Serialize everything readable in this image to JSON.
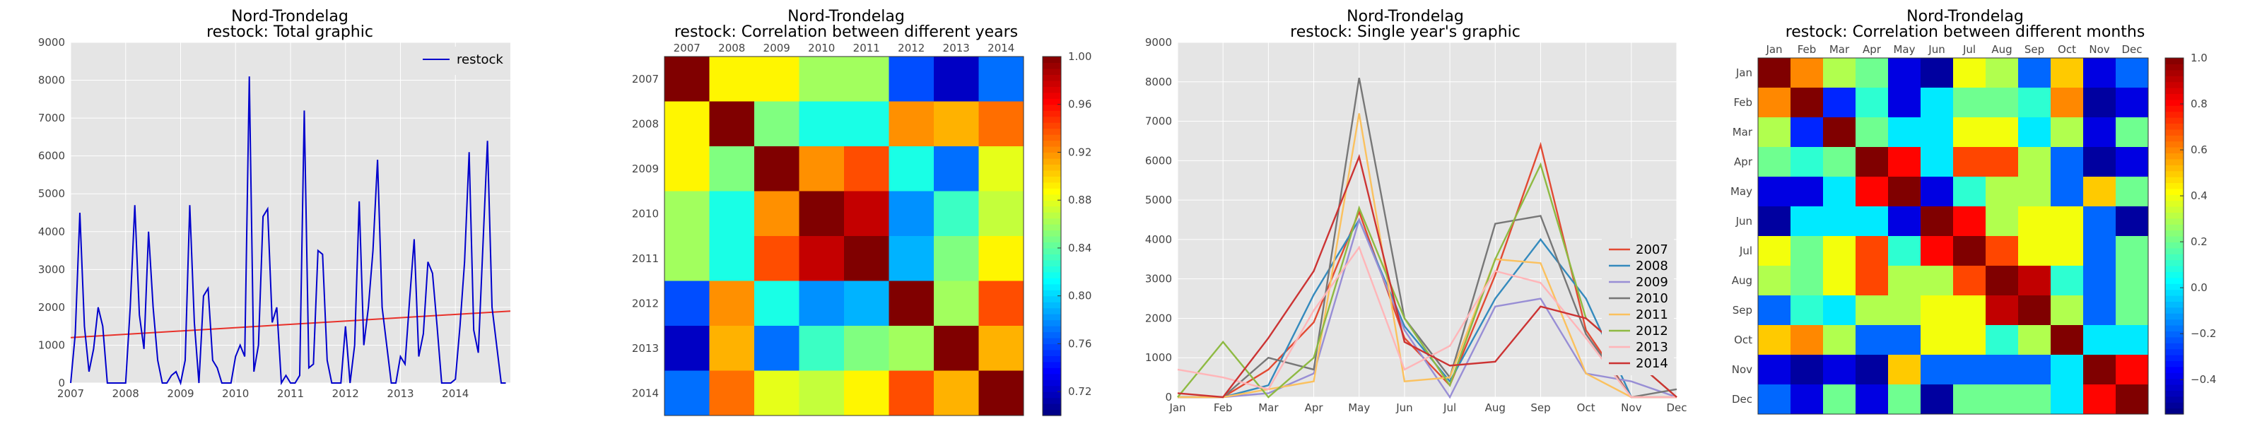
{
  "colors": {
    "restock_line": "#0000cc",
    "trend_line": "#e8312a",
    "panel_bg": "#e5e5e5",
    "grid": "#ffffff",
    "years": {
      "2007": "#e24a33",
      "2008": "#348abd",
      "2009": "#988ed5",
      "2010": "#777777",
      "2011": "#fbc15e",
      "2012": "#8eba42",
      "2013": "#ffb5b8",
      "2014": "#cc3333"
    }
  },
  "chart_data": [
    {
      "type": "line",
      "title": "Nord-Trondelag",
      "subtitle": "restock: Total graphic",
      "xlabel": "",
      "ylabel": "",
      "ylim": [
        0,
        9000
      ],
      "xlim": [
        2007.0,
        2015.0
      ],
      "x_ticks": [
        "2007",
        "2008",
        "2009",
        "2010",
        "2011",
        "2012",
        "2013",
        "2014"
      ],
      "y_ticks": [
        "0",
        "1000",
        "2000",
        "3000",
        "4000",
        "5000",
        "6000",
        "7000",
        "8000",
        "9000"
      ],
      "legend": {
        "placement": "top-right",
        "entries": [
          "restock"
        ]
      },
      "grid": true,
      "series": [
        {
          "name": "restock",
          "values": [
            0,
            1300,
            4500,
            1500,
            300,
            900,
            2000,
            1500,
            0,
            0,
            0,
            0,
            0,
            2000,
            4700,
            1800,
            900,
            4000,
            2000,
            600,
            0,
            0,
            200,
            300,
            0,
            600,
            4700,
            1600,
            0,
            2300,
            2500,
            600,
            400,
            0,
            0,
            0,
            700,
            1000,
            700,
            8100,
            300,
            1000,
            4400,
            4600,
            1600,
            2000,
            0,
            200,
            0,
            0,
            200,
            7200,
            400,
            500,
            3500,
            3400,
            600,
            0,
            0,
            0,
            1500,
            0,
            1000,
            4800,
            1000,
            2000,
            3500,
            5900,
            2000,
            1000,
            0,
            0,
            700,
            500,
            2200,
            3800,
            700,
            1300,
            3200,
            2900,
            1500,
            0,
            0,
            0,
            100,
            1500,
            3200,
            6100,
            1400,
            800,
            3600,
            6400,
            2000,
            1000,
            0,
            0
          ]
        }
      ],
      "trend": [
        1200,
        1900
      ]
    },
    {
      "type": "heatmap",
      "title": "Nord-Trondelag",
      "subtitle": "restock: Correlation between different years",
      "categories": [
        "2007",
        "2008",
        "2009",
        "2010",
        "2011",
        "2012",
        "2013",
        "2014"
      ],
      "matrix": [
        [
          1.0,
          0.89,
          0.89,
          0.86,
          0.86,
          0.76,
          0.72,
          0.77
        ],
        [
          0.89,
          1.0,
          0.85,
          0.82,
          0.82,
          0.92,
          0.91,
          0.93
        ],
        [
          0.89,
          0.85,
          1.0,
          0.92,
          0.94,
          0.82,
          0.77,
          0.88
        ],
        [
          0.86,
          0.82,
          0.92,
          1.0,
          0.98,
          0.78,
          0.83,
          0.87
        ],
        [
          0.86,
          0.82,
          0.94,
          0.98,
          1.0,
          0.79,
          0.85,
          0.89
        ],
        [
          0.76,
          0.92,
          0.82,
          0.78,
          0.79,
          1.0,
          0.86,
          0.94
        ],
        [
          0.72,
          0.91,
          0.77,
          0.83,
          0.85,
          0.86,
          1.0,
          0.91
        ],
        [
          0.77,
          0.93,
          0.88,
          0.87,
          0.89,
          0.94,
          0.91,
          1.0
        ]
      ],
      "colorbar": {
        "min": 0.7,
        "max": 1.0,
        "ticks": [
          "0.72",
          "0.76",
          "0.80",
          "0.84",
          "0.88",
          "0.92",
          "0.96",
          "1.00"
        ]
      }
    },
    {
      "type": "line",
      "title": "Nord-Trondelag",
      "subtitle": "restock: Single year's graphic",
      "categories": [
        "Jan",
        "Feb",
        "Mar",
        "Apr",
        "May",
        "Jun",
        "Jul",
        "Aug",
        "Sep",
        "Oct",
        "Nov",
        "Dec"
      ],
      "ylim": [
        0,
        9000
      ],
      "y_ticks": [
        "0",
        "1000",
        "2000",
        "3000",
        "4000",
        "5000",
        "6000",
        "7000",
        "8000",
        "9000"
      ],
      "legend": {
        "placement": "lower-right"
      },
      "grid": true,
      "series": [
        {
          "name": "2007",
          "values": [
            0,
            0,
            700,
            1900,
            4700,
            1500,
            300,
            3100,
            6400,
            1700,
            0,
            0
          ]
        },
        {
          "name": "2008",
          "values": [
            0,
            0,
            300,
            2600,
            4500,
            1800,
            400,
            2500,
            4000,
            2500,
            0,
            0
          ]
        },
        {
          "name": "2009",
          "values": [
            0,
            0,
            100,
            600,
            4500,
            1700,
            0,
            2300,
            2500,
            600,
            400,
            0
          ]
        },
        {
          "name": "2010",
          "values": [
            0,
            0,
            1000,
            700,
            8100,
            2000,
            500,
            4400,
            4600,
            1600,
            0,
            200
          ]
        },
        {
          "name": "2011",
          "values": [
            0,
            0,
            200,
            400,
            7200,
            400,
            500,
            3500,
            3400,
            600,
            0,
            0
          ]
        },
        {
          "name": "2012",
          "values": [
            0,
            1400,
            0,
            1000,
            4800,
            2000,
            300,
            3500,
            5900,
            2000,
            1000,
            0
          ]
        },
        {
          "name": "2013",
          "values": [
            700,
            500,
            200,
            2200,
            3800,
            700,
            1300,
            3200,
            2900,
            1500,
            0,
            0
          ]
        },
        {
          "name": "2014",
          "values": [
            100,
            0,
            1500,
            3200,
            6100,
            1400,
            800,
            900,
            2300,
            2000,
            1000,
            0
          ]
        }
      ]
    },
    {
      "type": "heatmap",
      "title": "Nord-Trondelag",
      "subtitle": "restock: Correlation between different months",
      "categories": [
        "Jan",
        "Feb",
        "Mar",
        "Apr",
        "May",
        "Jun",
        "Jul",
        "Aug",
        "Sep",
        "Oct",
        "Nov",
        "Dec"
      ],
      "matrix": [
        [
          1.0,
          0.6,
          0.3,
          0.2,
          -0.4,
          -0.5,
          0.4,
          0.3,
          -0.2,
          0.5,
          -0.4,
          -0.2
        ],
        [
          0.6,
          1.0,
          -0.3,
          0.1,
          -0.4,
          0.0,
          0.2,
          0.2,
          0.1,
          0.6,
          -0.5,
          -0.4
        ],
        [
          0.3,
          -0.3,
          1.0,
          0.2,
          0.0,
          0.0,
          0.4,
          0.4,
          0.0,
          0.3,
          -0.4,
          0.2
        ],
        [
          0.2,
          0.1,
          0.2,
          1.0,
          0.8,
          0.0,
          0.7,
          0.7,
          0.3,
          -0.2,
          -0.5,
          -0.4
        ],
        [
          -0.4,
          -0.4,
          0.0,
          0.8,
          1.0,
          -0.4,
          0.1,
          0.3,
          0.3,
          -0.2,
          0.5,
          0.2
        ],
        [
          -0.5,
          0.0,
          0.0,
          0.0,
          -0.4,
          1.0,
          0.8,
          0.3,
          0.4,
          0.4,
          -0.2,
          -0.5
        ],
        [
          0.4,
          0.2,
          0.4,
          0.7,
          0.1,
          0.8,
          1.0,
          0.7,
          0.4,
          0.4,
          -0.2,
          0.2
        ],
        [
          0.3,
          0.2,
          0.4,
          0.7,
          0.3,
          0.3,
          0.7,
          1.0,
          0.9,
          0.1,
          -0.2,
          0.2
        ],
        [
          -0.2,
          0.1,
          0.0,
          0.3,
          0.3,
          0.4,
          0.4,
          0.9,
          1.0,
          0.3,
          -0.2,
          0.2
        ],
        [
          0.5,
          0.6,
          0.3,
          -0.2,
          -0.2,
          0.4,
          0.4,
          0.1,
          0.3,
          1.0,
          0.0,
          0.0
        ],
        [
          -0.4,
          -0.5,
          -0.4,
          -0.5,
          0.5,
          -0.2,
          -0.2,
          -0.2,
          -0.2,
          0.0,
          1.0,
          0.8
        ],
        [
          -0.2,
          -0.4,
          0.2,
          -0.4,
          0.2,
          -0.5,
          0.2,
          0.2,
          0.2,
          0.0,
          0.8,
          1.0
        ]
      ],
      "colorbar": {
        "min": -0.55,
        "max": 1.0,
        "ticks": [
          "−0.4",
          "−0.2",
          "0.0",
          "0.2",
          "0.4",
          "0.6",
          "0.8",
          "1.0"
        ]
      }
    }
  ]
}
